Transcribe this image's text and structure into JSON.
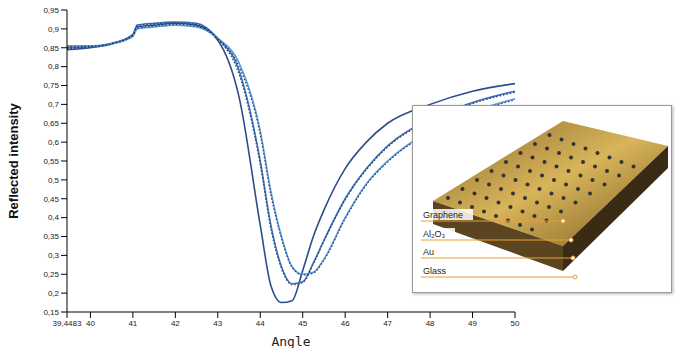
{
  "chart_data": {
    "type": "line",
    "x_label": "Angle",
    "y_label": "Reflected intensity",
    "x": [
      39.4483,
      40,
      40.5,
      41,
      41.1,
      41.5,
      42,
      42.5,
      43,
      43.5,
      44,
      44.25,
      44.5,
      44.75,
      45,
      45.25,
      45.5,
      46,
      46.5,
      47,
      48,
      49,
      50
    ],
    "series": [
      {
        "color": "#2c4f8a",
        "line_style": "solid",
        "values": [
          0.845,
          0.85,
          0.86,
          0.885,
          0.905,
          0.91,
          0.915,
          0.91,
          0.87,
          0.72,
          0.38,
          0.22,
          0.175,
          0.18,
          0.26,
          0.35,
          0.42,
          0.53,
          0.6,
          0.65,
          0.7,
          0.735,
          0.755
        ]
      },
      {
        "color": "#3f6fb5",
        "line_style": "solid",
        "values": [
          0.85,
          0.853,
          0.862,
          0.885,
          0.91,
          0.915,
          0.918,
          0.915,
          0.875,
          0.79,
          0.55,
          0.38,
          0.27,
          0.225,
          0.23,
          0.28,
          0.34,
          0.45,
          0.53,
          0.59,
          0.66,
          0.705,
          0.735
        ]
      },
      {
        "color": "#5b9bd5",
        "line_style": "solid",
        "values": [
          0.855,
          0.855,
          0.86,
          0.88,
          0.9,
          0.905,
          0.91,
          0.905,
          0.875,
          0.81,
          0.63,
          0.47,
          0.35,
          0.27,
          0.25,
          0.255,
          0.29,
          0.4,
          0.49,
          0.55,
          0.63,
          0.68,
          0.715
        ]
      },
      {
        "color": "#1f3f78",
        "line_style": "dotted",
        "values": [
          0.848,
          0.852,
          0.861,
          0.884,
          0.908,
          0.913,
          0.916,
          0.912,
          0.873,
          0.78,
          0.54,
          0.37,
          0.265,
          0.222,
          0.228,
          0.277,
          0.337,
          0.447,
          0.527,
          0.587,
          0.657,
          0.702,
          0.732
        ]
      },
      {
        "color": "#1f3f78",
        "line_style": "dotted",
        "values": [
          0.853,
          0.854,
          0.861,
          0.881,
          0.902,
          0.907,
          0.912,
          0.907,
          0.874,
          0.8,
          0.62,
          0.46,
          0.345,
          0.268,
          0.248,
          0.253,
          0.287,
          0.397,
          0.487,
          0.547,
          0.627,
          0.677,
          0.712
        ]
      }
    ],
    "xlim": [
      39.4483,
      50
    ],
    "xticks": [
      {
        "value": 39.4483,
        "label": "39,4483"
      },
      40,
      41,
      42,
      43,
      44,
      45,
      46,
      47,
      48,
      49,
      50
    ],
    "ylim": [
      0.15,
      0.95
    ],
    "yticks": [
      {
        "value": 0.15,
        "label": "0,15"
      },
      {
        "value": 0.2,
        "label": "0,2"
      },
      {
        "value": 0.25,
        "label": "0,25"
      },
      {
        "value": 0.3,
        "label": "0,3"
      },
      {
        "value": 0.35,
        "label": "0,35"
      },
      {
        "value": 0.4,
        "label": "0,4"
      },
      {
        "value": 0.45,
        "label": "0,45"
      },
      {
        "value": 0.5,
        "label": "0,5"
      },
      {
        "value": 0.55,
        "label": "0,55"
      },
      {
        "value": 0.6,
        "label": "0,6"
      },
      {
        "value": 0.65,
        "label": "0,65"
      },
      {
        "value": 0.7,
        "label": "0,7"
      },
      {
        "value": 0.75,
        "label": "0,75"
      },
      {
        "value": 0.8,
        "label": "0,8"
      },
      {
        "value": 0.85,
        "label": "0,85"
      },
      {
        "value": 0.9,
        "label": "0,9"
      },
      {
        "value": 0.95,
        "label": "0,95"
      }
    ],
    "grid": false,
    "annotations": [
      "Graphene",
      "Al₂O₃",
      "Au",
      "Glass"
    ]
  }
}
